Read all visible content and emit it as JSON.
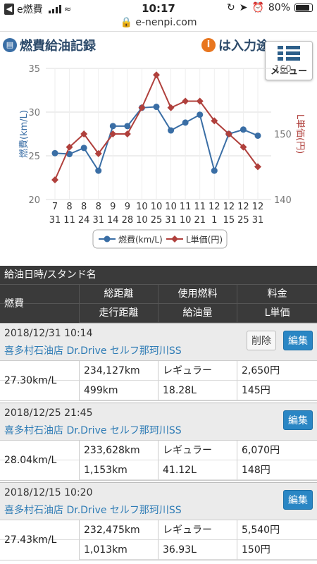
{
  "status": {
    "app": "e燃費",
    "time": "10:17",
    "battery": "80%",
    "battery_level": 0.8
  },
  "url": "e-nenpi.com",
  "header": {
    "title": "燃費給油記録",
    "notice": "は入力途"
  },
  "menu": {
    "label": "メニュー"
  },
  "chart_data": {
    "type": "line",
    "categories": [
      "7\n31",
      "8\n11",
      "8\n24",
      "8\n31",
      "9\n14",
      "9\n28",
      "10\n10",
      "10\n25",
      "10\n31",
      "11\n10",
      "11\n21",
      "12\n1",
      "12\n15",
      "12\n25",
      "12\n31"
    ],
    "series": [
      {
        "name": "燃費(km/L)",
        "axis": "left",
        "color": "#3a6ea5",
        "marker": "circle",
        "values": [
          25.3,
          25.2,
          25.9,
          23.3,
          28.4,
          28.4,
          30.5,
          30.6,
          27.9,
          28.8,
          29.7,
          23.3,
          27.5,
          28.0,
          27.3
        ]
      },
      {
        "name": "L単価(円)",
        "axis": "right",
        "color": "#b0403c",
        "marker": "diamond",
        "values": [
          143,
          148,
          150,
          147,
          150,
          150,
          154,
          159,
          154,
          155,
          155,
          152,
          150,
          148,
          145
        ]
      }
    ],
    "y_left": {
      "label": "燃費(km/L)",
      "range": [
        20,
        35
      ],
      "ticks": [
        20,
        25,
        30,
        35
      ]
    },
    "y_right": {
      "label": "L単価(円)",
      "range": [
        140,
        160
      ],
      "ticks": [
        140,
        150,
        160
      ]
    },
    "grid": true,
    "legend": "bottom"
  },
  "table": {
    "title": "給油日時/スタンド名",
    "col_fuel": "燃費",
    "h1": [
      "総距離",
      "使用燃料",
      "料金"
    ],
    "h2": [
      "走行距離",
      "給油量",
      "L単価"
    ]
  },
  "entries": [
    {
      "datetime": "2018/12/31 10:14",
      "station": "喜多村石油店 Dr.Drive セルフ那珂川SS",
      "delete": "削除",
      "edit": "編集",
      "efficiency": "27.30km/L",
      "total": "234,127km",
      "fuel": "レギュラー",
      "price": "2,650円",
      "distance": "499km",
      "amount": "18.28L",
      "unit": "145円"
    },
    {
      "datetime": "2018/12/25 21:45",
      "station": "喜多村石油店 Dr.Drive セルフ那珂川SS",
      "edit": "編集",
      "efficiency": "28.04km/L",
      "total": "233,628km",
      "fuel": "レギュラー",
      "price": "6,070円",
      "distance": "1,153km",
      "amount": "41.12L",
      "unit": "148円"
    },
    {
      "datetime": "2018/12/15 10:20",
      "station": "喜多村石油店 Dr.Drive セルフ那珂川SS",
      "edit": "編集",
      "efficiency": "27.43km/L",
      "total": "232,475km",
      "fuel": "レギュラー",
      "price": "5,540円",
      "distance": "1,013km",
      "amount": "36.93L",
      "unit": "150円"
    }
  ]
}
